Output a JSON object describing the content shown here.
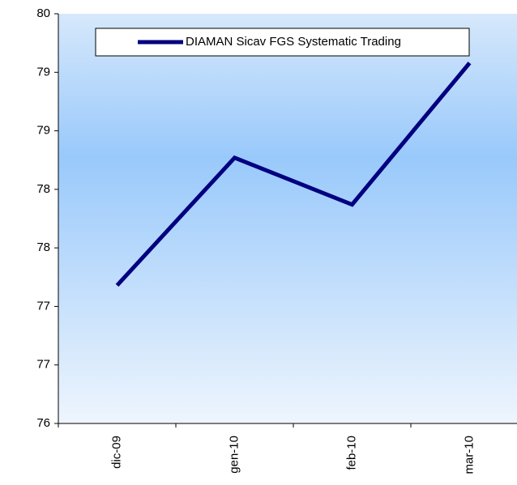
{
  "chart_data": {
    "type": "line",
    "categories": [
      "dic-09",
      "gen-10",
      "feb-10",
      "mar-10"
    ],
    "series": [
      {
        "name": "DIAMAN Sicav FGS Systematic Trading",
        "color": "#000080",
        "values": [
          77.18,
          78.27,
          77.87,
          79.08
        ]
      }
    ],
    "ylim": [
      76,
      79.5
    ],
    "yticks": [
      76,
      {
        "value": 76.5,
        "label": "77"
      },
      77,
      {
        "value": 77.5,
        "label": "78"
      },
      78,
      {
        "value": 78.5,
        "label": "79"
      },
      79,
      {
        "value": 79.5,
        "label": "80"
      }
    ],
    "legend": "top"
  }
}
